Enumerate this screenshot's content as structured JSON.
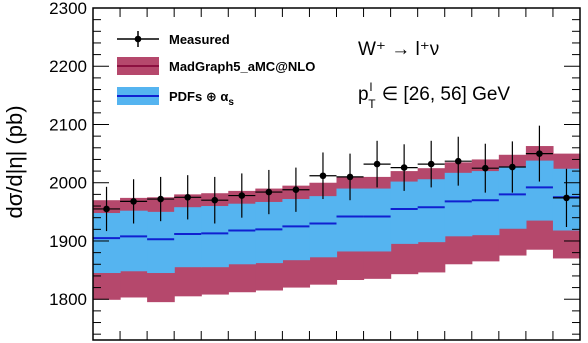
{
  "chart_data": {
    "type": "line",
    "ylabel": "dσ/d|η| (pb)",
    "ylim": [
      1730,
      2300
    ],
    "yticks": [
      1800,
      1900,
      2000,
      2100,
      2200,
      2300
    ],
    "annotation": {
      "process": "W⁺ → l⁺ν",
      "cut_pt": "p",
      "cut_sup": "l",
      "cut_sub": "T",
      "cut_range": "∈ [26,  56] GeV"
    },
    "legend": {
      "measured": "Measured",
      "madgraph": "MadGraph5_aMC@NLO",
      "pdfs_main": "PDFs ⊕ α",
      "pdfs_sub": "s"
    },
    "colors": {
      "madgraph_fill": "#b5486c",
      "madgraph_line": "#8c1040",
      "pdf_fill": "#55b4f0",
      "pdf_line": "#1020d0",
      "data": "#000000"
    },
    "bins": 18,
    "series": [
      {
        "name": "Measured",
        "values": [
          1955,
          1968,
          1972,
          1975,
          1970,
          1978,
          1984,
          1988,
          2012,
          2010,
          2032,
          2026,
          2032,
          2037,
          2025,
          2027,
          2050,
          1974
        ],
        "err": [
          38,
          38,
          38,
          38,
          40,
          38,
          38,
          38,
          40,
          40,
          40,
          40,
          40,
          42,
          42,
          44,
          48,
          50
        ]
      },
      {
        "name": "MadGraph5_aMC@NLO",
        "central": [
          1905,
          1908,
          1903,
          1912,
          1913,
          1918,
          1920,
          1925,
          1930,
          1942,
          1942,
          1955,
          1958,
          1968,
          1970,
          1980,
          1992,
          1975
        ],
        "upper": [
          1970,
          1974,
          1975,
          1980,
          1982,
          1986,
          1990,
          1995,
          2000,
          2010,
          2010,
          2020,
          2025,
          2035,
          2040,
          2048,
          2063,
          2050
        ],
        "lower": [
          1799,
          1803,
          1795,
          1805,
          1808,
          1812,
          1815,
          1820,
          1825,
          1833,
          1835,
          1843,
          1846,
          1860,
          1865,
          1875,
          1885,
          1870
        ]
      },
      {
        "name": "PDFs ⊕ αs",
        "central": [
          1905,
          1908,
          1903,
          1912,
          1913,
          1918,
          1920,
          1925,
          1930,
          1942,
          1942,
          1955,
          1958,
          1968,
          1970,
          1980,
          1992,
          1975
        ],
        "upper": [
          1948,
          1952,
          1950,
          1958,
          1960,
          1964,
          1967,
          1972,
          1977,
          1990,
          1990,
          2002,
          2006,
          2017,
          2020,
          2028,
          2038,
          2024
        ],
        "lower": [
          1845,
          1848,
          1845,
          1855,
          1855,
          1860,
          1862,
          1867,
          1872,
          1882,
          1882,
          1895,
          1898,
          1908,
          1910,
          1921,
          1935,
          1918
        ]
      }
    ]
  }
}
